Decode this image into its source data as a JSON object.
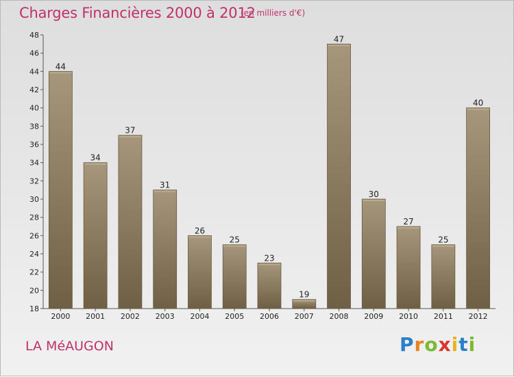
{
  "chart_data": {
    "type": "bar",
    "title": "Charges Financières 2000 à 2012",
    "subtitle": "(en milliers d'€)",
    "categories": [
      "2000",
      "2001",
      "2002",
      "2003",
      "2004",
      "2005",
      "2006",
      "2007",
      "2008",
      "2009",
      "2010",
      "2011",
      "2012"
    ],
    "values": [
      44,
      34,
      37,
      31,
      26,
      25,
      23,
      19,
      47,
      30,
      27,
      25,
      40
    ],
    "ylim": [
      18,
      48
    ],
    "yticks": [
      "18",
      "20",
      "22",
      "24",
      "26",
      "28",
      "30",
      "32",
      "34",
      "36",
      "38",
      "40",
      "42",
      "44",
      "46",
      "48"
    ],
    "grid": false,
    "bar_color": "#8b7a5e"
  },
  "location": "LA MéAUGON",
  "logo": {
    "letters": [
      "P",
      "r",
      "o",
      "x",
      "i",
      "t",
      "i"
    ],
    "colors": [
      "#2a7fc9",
      "#e8831f",
      "#7cba35",
      "#d6372f",
      "#e8b41f",
      "#2a7fc9",
      "#7cba35"
    ]
  }
}
